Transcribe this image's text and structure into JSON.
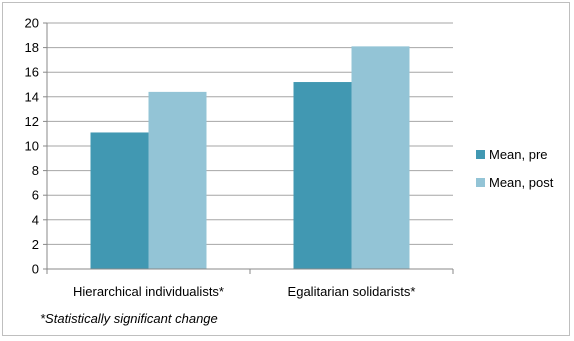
{
  "chart_data": {
    "type": "bar",
    "title": "",
    "xlabel": "",
    "ylabel": "",
    "categories": [
      "Hierarchical individualists*",
      "Egalitarian solidarists*"
    ],
    "series": [
      {
        "name": "Mean, pre",
        "values": [
          11.1,
          15.2
        ],
        "color": "#4198b2"
      },
      {
        "name": "Mean, post",
        "values": [
          14.4,
          18.1
        ],
        "color": "#93c4d6"
      }
    ],
    "ylim": [
      0,
      20
    ],
    "yticks": [
      0,
      2,
      4,
      6,
      8,
      10,
      12,
      14,
      16,
      18,
      20
    ],
    "grid": true,
    "legend_position": "right",
    "footnote": "*Statistically significant change"
  }
}
